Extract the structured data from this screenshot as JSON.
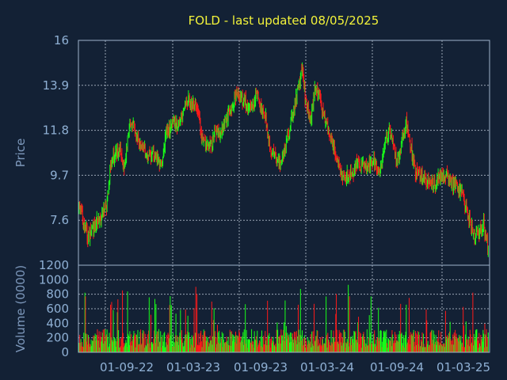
{
  "chart_data": {
    "type": "stock-candlestick-volume",
    "title": "FOLD - last updated 08/05/2025",
    "colors": {
      "background": "#132135",
      "up": "#19ff19",
      "down": "#ff1a1a",
      "title": "#f2f23a",
      "text": "#8fb0d4"
    },
    "price_panel": {
      "ylabel": "Price",
      "ylim": [
        5.5,
        16
      ],
      "yticks": [
        "16",
        "13.9",
        "11.8",
        "9.7",
        "7.6"
      ],
      "ytick_values": [
        16,
        13.9,
        11.8,
        9.7,
        7.6
      ],
      "grid": true
    },
    "volume_panel": {
      "ylabel": "Volume (0000)",
      "ylim": [
        0,
        1200
      ],
      "yticks": [
        "1200",
        "1000",
        "800",
        "600",
        "400",
        "200",
        "0"
      ],
      "ytick_values": [
        1200,
        1000,
        800,
        600,
        400,
        200,
        0
      ],
      "grid": true
    },
    "x_dates": [
      "01-09-22",
      "01-03-23",
      "01-09-23",
      "01-03-24",
      "01-09-24",
      "01-03-25"
    ],
    "price_path": [
      {
        "t": 0,
        "p": 8.2
      },
      {
        "t": 2,
        "p": 6.8
      },
      {
        "t": 4,
        "p": 7.6
      },
      {
        "t": 6,
        "p": 8.2
      },
      {
        "t": 7,
        "p": 10.4
      },
      {
        "t": 9,
        "p": 10.9
      },
      {
        "t": 10,
        "p": 10.0
      },
      {
        "t": 11,
        "p": 12.2
      },
      {
        "t": 12,
        "p": 12.0
      },
      {
        "t": 13,
        "p": 11.4
      },
      {
        "t": 15,
        "p": 10.6
      },
      {
        "t": 17,
        "p": 10.6
      },
      {
        "t": 18,
        "p": 10.1
      },
      {
        "t": 19,
        "p": 11.6
      },
      {
        "t": 21,
        "p": 12.2
      },
      {
        "t": 22,
        "p": 12.0
      },
      {
        "t": 24,
        "p": 13.2
      },
      {
        "t": 26,
        "p": 12.9
      },
      {
        "t": 27,
        "p": 11.4
      },
      {
        "t": 29,
        "p": 11.0
      },
      {
        "t": 30,
        "p": 11.8
      },
      {
        "t": 31,
        "p": 11.5
      },
      {
        "t": 33,
        "p": 12.7
      },
      {
        "t": 34,
        "p": 13.2
      },
      {
        "t": 35,
        "p": 13.5
      },
      {
        "t": 36,
        "p": 13.2
      },
      {
        "t": 38,
        "p": 12.8
      },
      {
        "t": 39,
        "p": 13.5
      },
      {
        "t": 40,
        "p": 12.8
      },
      {
        "t": 41,
        "p": 12.4
      },
      {
        "t": 42,
        "p": 11.0
      },
      {
        "t": 44,
        "p": 10.3
      },
      {
        "t": 45,
        "p": 10.6
      },
      {
        "t": 46,
        "p": 11.6
      },
      {
        "t": 48,
        "p": 13.5
      },
      {
        "t": 49,
        "p": 14.6
      },
      {
        "t": 50,
        "p": 12.9
      },
      {
        "t": 51,
        "p": 12.3
      },
      {
        "t": 52,
        "p": 13.9
      },
      {
        "t": 54,
        "p": 12.4
      },
      {
        "t": 55,
        "p": 11.8
      },
      {
        "t": 56,
        "p": 11.0
      },
      {
        "t": 57,
        "p": 10.2
      },
      {
        "t": 58,
        "p": 9.6
      },
      {
        "t": 60,
        "p": 9.7
      },
      {
        "t": 61,
        "p": 10.2
      },
      {
        "t": 63,
        "p": 10.0
      },
      {
        "t": 65,
        "p": 10.4
      },
      {
        "t": 66,
        "p": 9.9
      },
      {
        "t": 68,
        "p": 11.8
      },
      {
        "t": 69,
        "p": 11.2
      },
      {
        "t": 70,
        "p": 10.4
      },
      {
        "t": 72,
        "p": 12.2
      },
      {
        "t": 73,
        "p": 11.0
      },
      {
        "t": 74,
        "p": 9.8
      },
      {
        "t": 76,
        "p": 9.6
      },
      {
        "t": 78,
        "p": 9.2
      },
      {
        "t": 79,
        "p": 9.6
      },
      {
        "t": 81,
        "p": 9.7
      },
      {
        "t": 82,
        "p": 9.3
      },
      {
        "t": 84,
        "p": 9.0
      },
      {
        "t": 85,
        "p": 8.2
      },
      {
        "t": 87,
        "p": 6.8
      },
      {
        "t": 89,
        "p": 7.4
      },
      {
        "t": 90,
        "p": 6.2
      }
    ]
  }
}
